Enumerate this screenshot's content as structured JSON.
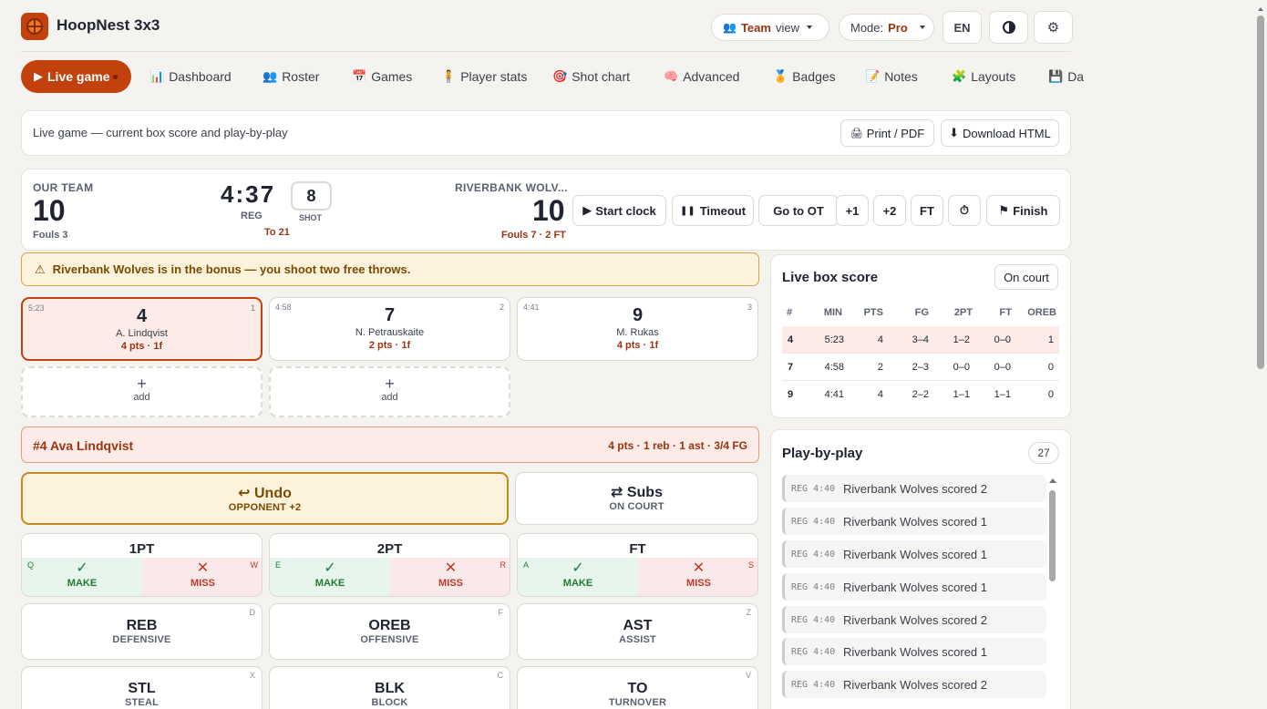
{
  "app": {
    "title": "HoopNest 3x3"
  },
  "header": {
    "team_view": "Team",
    "team_view_suffix": "view",
    "mode_label": "Mode:",
    "mode_value": "Pro",
    "lang": "EN"
  },
  "nav": [
    {
      "label": "Live game",
      "icon": "play-icon"
    },
    {
      "label": "Dashboard",
      "icon": "chart-icon"
    },
    {
      "label": "Roster",
      "icon": "people-icon"
    },
    {
      "label": "Games",
      "icon": "calendar-icon"
    },
    {
      "label": "Player stats",
      "icon": "player-icon"
    },
    {
      "label": "Shot chart",
      "icon": "target-icon"
    },
    {
      "label": "Advanced",
      "icon": "brain-icon"
    },
    {
      "label": "Badges",
      "icon": "medal-icon"
    },
    {
      "label": "Notes",
      "icon": "notes-icon"
    },
    {
      "label": "Layouts",
      "icon": "puzzle-icon"
    },
    {
      "label": "Da",
      "icon": "save-icon"
    }
  ],
  "subhead": {
    "text": "Live game — current box score and play-by-play",
    "print": "Print / PDF",
    "download": "Download HTML"
  },
  "score": {
    "our_label": "OUR TEAM",
    "our_score": "10",
    "our_fouls": "Fouls 3",
    "clock": "4:37",
    "period": "REG",
    "target": "To 21",
    "shot": "8",
    "shot_label": "SHOT",
    "opp_label": "RIVERBANK WOLV...",
    "opp_score": "10",
    "opp_fouls": "Fouls 7 · 2 FT",
    "buttons": {
      "start": "Start clock",
      "timeout": "Timeout",
      "ot": "Go to OT",
      "p1": "+1",
      "p2": "+2",
      "ft": "FT",
      "finish": "Finish"
    }
  },
  "alert": "Riverbank Wolves is in the bonus — you shoot two free throws.",
  "players": [
    {
      "time": "5:23",
      "slot": "1",
      "num": "4",
      "name": "A. Lindqvist",
      "stats": "4 pts · 1f"
    },
    {
      "time": "4:58",
      "slot": "2",
      "num": "7",
      "name": "N. Petrauskaite",
      "stats": "2 pts · 1f"
    },
    {
      "time": "4:41",
      "slot": "3",
      "num": "9",
      "name": "M. Rukas",
      "stats": "4 pts · 1f"
    }
  ],
  "add": {
    "plus": "+",
    "label": "add"
  },
  "selected": {
    "name": "#4 Ava Lindqvist",
    "stats": "4 pts · 1 reb · 1 ast · 3/4 FG"
  },
  "undo": {
    "title": "Undo",
    "sub": "OPPONENT +2"
  },
  "subs": {
    "title": "Subs",
    "sub": "ON COURT"
  },
  "shots": [
    {
      "title": "1PT",
      "make": "MAKE",
      "miss": "MISS",
      "kmake": "Q",
      "kmiss": "W"
    },
    {
      "title": "2PT",
      "make": "MAKE",
      "miss": "MISS",
      "kmake": "E",
      "kmiss": "R"
    },
    {
      "title": "FT",
      "make": "MAKE",
      "miss": "MISS",
      "kmake": "A",
      "kmiss": "S"
    }
  ],
  "actions": [
    {
      "title": "REB",
      "sub": "DEFENSIVE",
      "key": "D"
    },
    {
      "title": "OREB",
      "sub": "OFFENSIVE",
      "key": "F"
    },
    {
      "title": "AST",
      "sub": "ASSIST",
      "key": "Z"
    },
    {
      "title": "STL",
      "sub": "STEAL",
      "key": "X"
    },
    {
      "title": "BLK",
      "sub": "BLOCK",
      "key": "C"
    },
    {
      "title": "TO",
      "sub": "TURNOVER",
      "key": "V"
    }
  ],
  "box": {
    "title": "Live box score",
    "filter": "On court",
    "columns": [
      "#",
      "MIN",
      "PTS",
      "FG",
      "2PT",
      "FT",
      "OREB"
    ],
    "rows": [
      [
        "4",
        "5:23",
        "4",
        "3–4",
        "1–2",
        "0–0",
        "1"
      ],
      [
        "7",
        "4:58",
        "2",
        "2–3",
        "0–0",
        "0–0",
        "0"
      ],
      [
        "9",
        "4:41",
        "4",
        "2–2",
        "1–1",
        "1–1",
        "0"
      ]
    ]
  },
  "pbp": {
    "title": "Play-by-play",
    "count": "27",
    "items": [
      {
        "tag": "REG 4:40",
        "text": "Riverbank Wolves scored 2"
      },
      {
        "tag": "REG 4:40",
        "text": "Riverbank Wolves scored 1"
      },
      {
        "tag": "REG 4:40",
        "text": "Riverbank Wolves scored 1"
      },
      {
        "tag": "REG 4:40",
        "text": "Riverbank Wolves scored 1"
      },
      {
        "tag": "REG 4:40",
        "text": "Riverbank Wolves scored 2"
      },
      {
        "tag": "REG 4:40",
        "text": "Riverbank Wolves scored 1"
      },
      {
        "tag": "REG 4:40",
        "text": "Riverbank Wolves scored 2"
      }
    ]
  },
  "colors": {
    "accent": "#c2410c",
    "make": "#1f7a3a",
    "miss": "#c0392b"
  }
}
